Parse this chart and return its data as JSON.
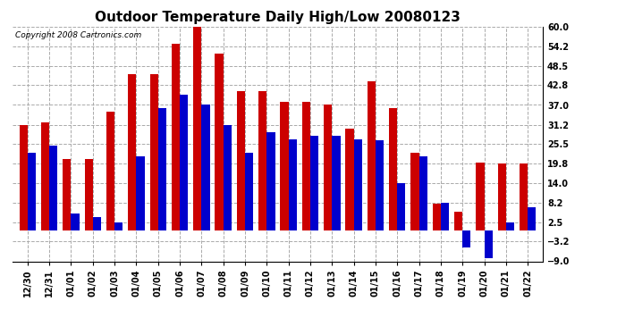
{
  "title": "Outdoor Temperature Daily High/Low 20080123",
  "copyright_text": "Copyright 2008 Cartronics.com",
  "dates": [
    "12/30",
    "12/31",
    "01/01",
    "01/02",
    "01/03",
    "01/04",
    "01/05",
    "01/06",
    "01/07",
    "01/08",
    "01/09",
    "01/10",
    "01/11",
    "01/12",
    "01/13",
    "01/14",
    "01/15",
    "01/16",
    "01/17",
    "01/18",
    "01/19",
    "01/20",
    "01/21",
    "01/22"
  ],
  "highs": [
    31.0,
    32.0,
    21.0,
    21.0,
    35.0,
    46.0,
    46.0,
    55.0,
    60.0,
    52.0,
    41.0,
    41.0,
    38.0,
    38.0,
    37.0,
    30.0,
    44.0,
    36.0,
    23.0,
    8.0,
    5.5,
    20.0,
    19.8,
    19.8
  ],
  "lows": [
    23.0,
    25.0,
    5.0,
    4.0,
    2.5,
    22.0,
    36.0,
    40.0,
    37.0,
    31.0,
    23.0,
    29.0,
    27.0,
    28.0,
    28.0,
    27.0,
    26.5,
    14.0,
    22.0,
    8.2,
    -5.0,
    -8.0,
    2.5,
    7.0
  ],
  "high_color": "#cc0000",
  "low_color": "#0000cc",
  "ylim": [
    -9.0,
    60.0
  ],
  "yticks": [
    60.0,
    54.2,
    48.5,
    42.8,
    37.0,
    31.2,
    25.5,
    19.8,
    14.0,
    8.2,
    2.5,
    -3.2,
    -9.0
  ],
  "grid_color": "#aaaaaa",
  "bg_color": "#ffffff",
  "bar_width": 0.38,
  "title_fontsize": 11,
  "tick_fontsize": 7,
  "copyright_fontsize": 6.5
}
